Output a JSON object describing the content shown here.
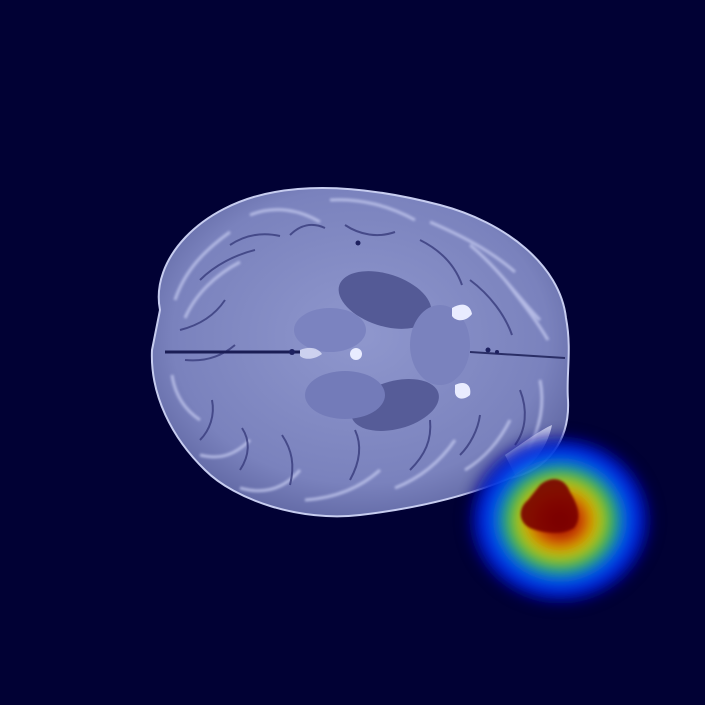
{
  "image": {
    "subject": "axial-brain-mri-slice-with-heatmap-overlay",
    "overlay_colormap": "jet",
    "colors": {
      "background": "#010134",
      "tissue_light": "#b4bbe6",
      "tissue_mid": "#8b93c9",
      "tissue_dark": "#4a4f86",
      "csf_bright": "#eef0ff",
      "heat_core": "#7a0000",
      "heat_hot": "#c81e0a",
      "heat_warm": "#e8d000",
      "heat_mid": "#22c43a",
      "heat_cool": "#0046ff",
      "heat_edge": "#00008a"
    }
  }
}
